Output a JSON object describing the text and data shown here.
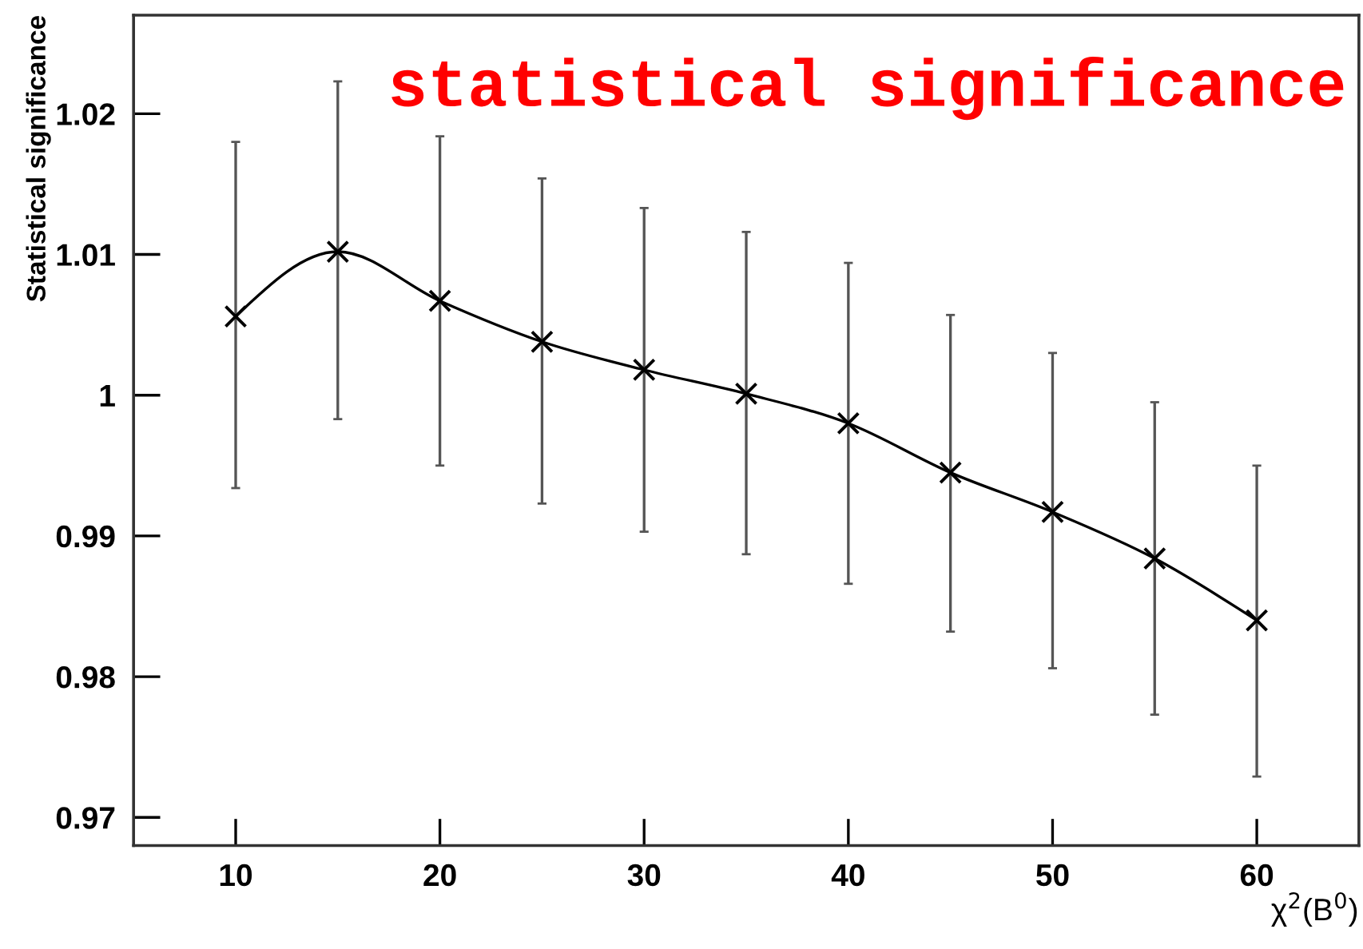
{
  "chart_data": {
    "type": "line",
    "xlabel": "χ$^{2}$(B$^{0}$)",
    "ylabel": "Statistical significance",
    "annotations": [
      "statistical significance"
    ],
    "x": [
      10,
      15,
      20,
      25,
      30,
      35,
      40,
      45,
      50,
      55,
      60
    ],
    "series": [
      {
        "color": "#000000",
        "values": [
          1.0056,
          1.0102,
          1.0067,
          1.0038,
          1.0018,
          1.0001,
          0.998,
          0.9945,
          0.9917,
          0.9884,
          0.984
        ],
        "errors": [
          [
            0.9934,
            1.018
          ],
          [
            0.9983,
            1.0223
          ],
          [
            0.995,
            1.0184
          ],
          [
            0.9923,
            1.0154
          ],
          [
            0.9903,
            1.0133
          ],
          [
            0.9887,
            1.0116
          ],
          [
            0.9866,
            1.0094
          ],
          [
            0.9832,
            1.0057
          ],
          [
            0.9806,
            1.003
          ],
          [
            0.9773,
            0.9995
          ],
          [
            0.9729,
            0.995
          ]
        ]
      }
    ],
    "marker": "cross",
    "line_style": "solid",
    "grid": false,
    "xlim": [
      5,
      65
    ],
    "ylim": [
      0.968,
      1.027
    ],
    "xticks": [
      10,
      20,
      30,
      40,
      50,
      60
    ],
    "yticks": [
      0.97,
      0.98,
      0.99,
      1,
      1.01,
      1.02
    ]
  }
}
